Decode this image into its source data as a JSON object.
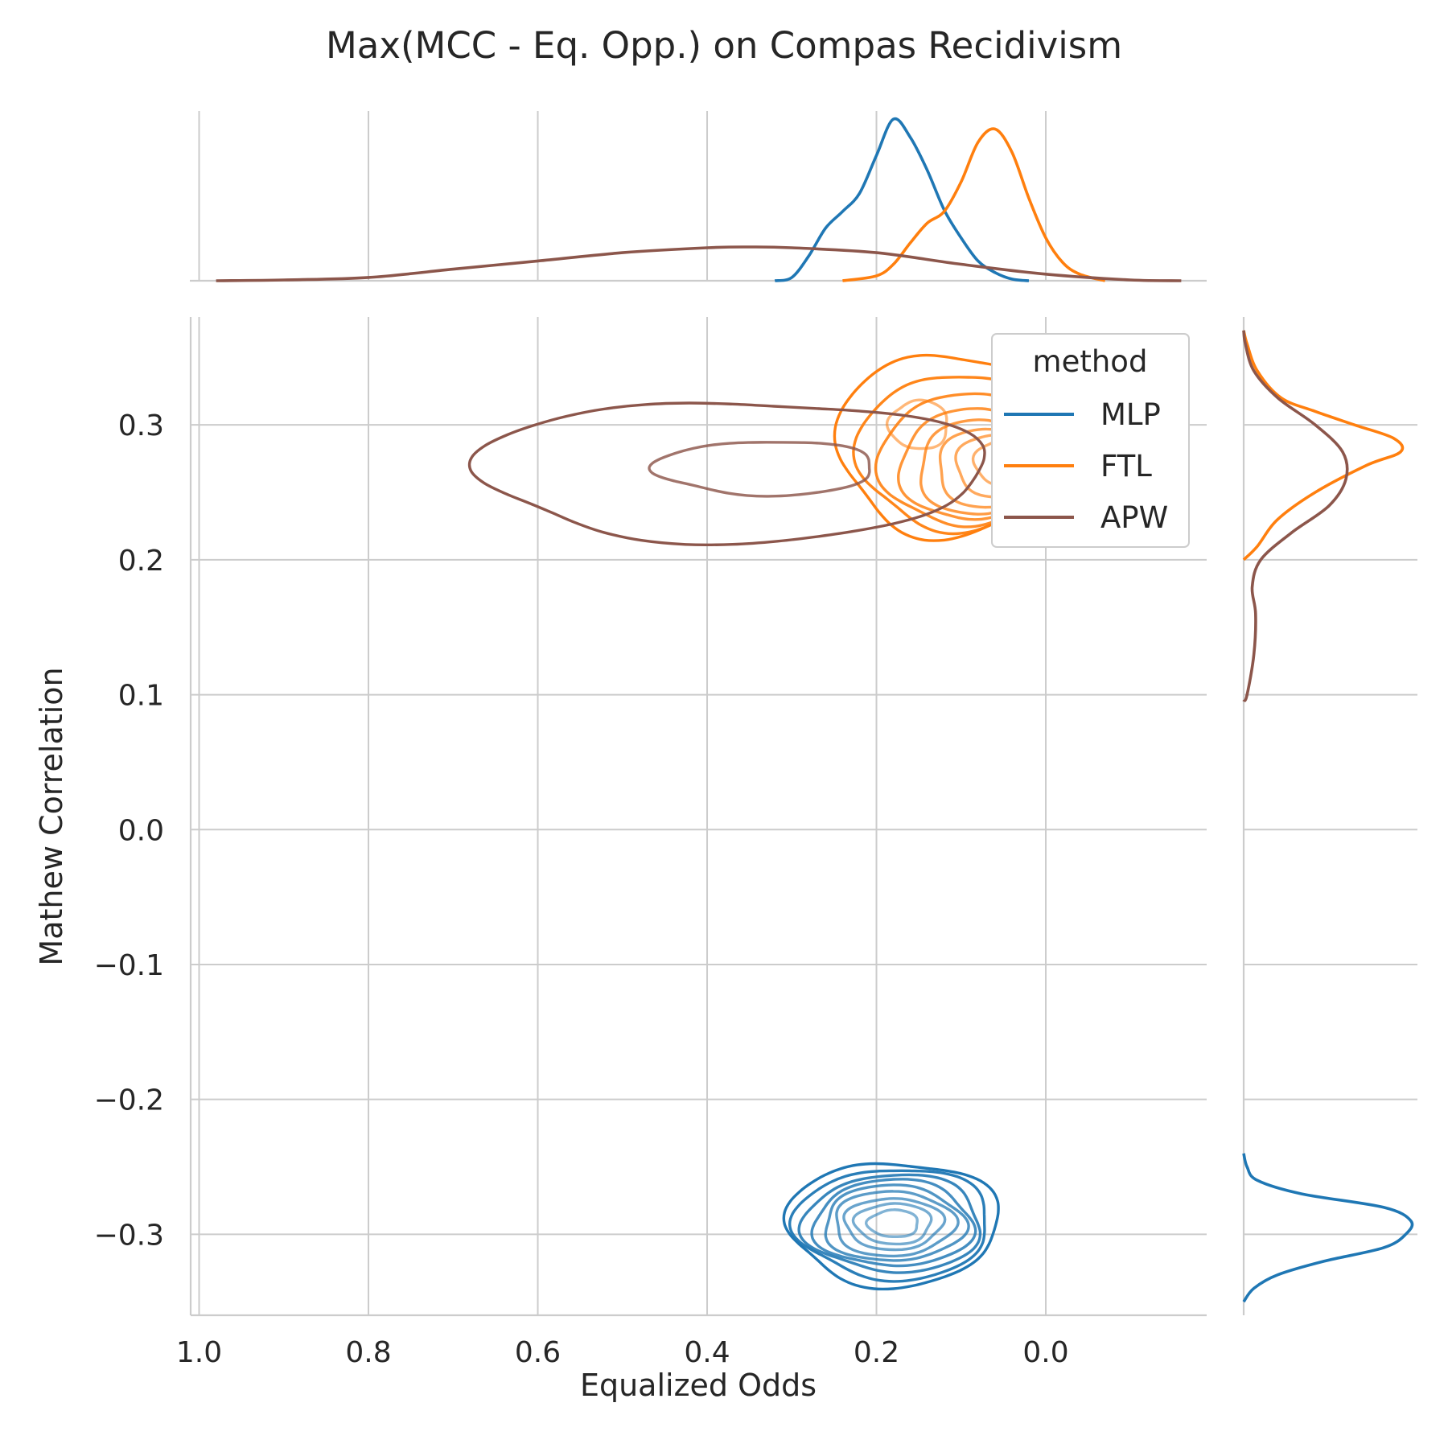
{
  "chart_data": {
    "type": "kde-joint-contour",
    "title": "Max(MCC - Eq. Opp.) on Compas Recidivism",
    "xlabel": "Equalized Odds",
    "ylabel": "Mathew Correlation",
    "x_inverted": true,
    "xlim": [
      1.01,
      -0.19
    ],
    "ylim": [
      -0.36,
      0.38
    ],
    "x_ticks": [
      1.0,
      0.8,
      0.6,
      0.4,
      0.2,
      0.0
    ],
    "x_tick_labels": [
      "1.0",
      "0.8",
      "0.6",
      "0.4",
      "0.2",
      "0.0"
    ],
    "y_ticks": [
      0.3,
      0.2,
      0.1,
      0.0,
      -0.1,
      -0.2,
      -0.3
    ],
    "y_tick_labels": [
      "0.3",
      "0.2",
      "0.1",
      "0.0",
      "−0.1",
      "−0.2",
      "−0.3"
    ],
    "grid": true,
    "legend": {
      "title": "method",
      "placement": "upper-right"
    },
    "series": [
      {
        "name": "MLP",
        "color": "#1f77b4",
        "contours": [
          {
            "center": [
              0.18,
              -0.292
            ],
            "rx": 0.125,
            "ry": 0.046
          },
          {
            "center": [
              0.18,
              -0.292
            ],
            "rx": 0.115,
            "ry": 0.041
          },
          {
            "center": [
              0.18,
              -0.292
            ],
            "rx": 0.105,
            "ry": 0.036
          },
          {
            "center": [
              0.18,
              -0.292
            ],
            "rx": 0.094,
            "ry": 0.032
          },
          {
            "center": [
              0.18,
              -0.292
            ],
            "rx": 0.083,
            "ry": 0.028
          },
          {
            "center": [
              0.18,
              -0.292
            ],
            "rx": 0.071,
            "ry": 0.024
          },
          {
            "center": [
              0.18,
              -0.292
            ],
            "rx": 0.058,
            "ry": 0.019
          },
          {
            "center": [
              0.18,
              -0.292
            ],
            "rx": 0.045,
            "ry": 0.015
          },
          {
            "center": [
              0.18,
              -0.292
            ],
            "rx": 0.03,
            "ry": 0.01
          }
        ],
        "x_marginal": [
          [
            0.32,
            0
          ],
          [
            0.3,
            0.02
          ],
          [
            0.28,
            0.15
          ],
          [
            0.26,
            0.32
          ],
          [
            0.24,
            0.42
          ],
          [
            0.22,
            0.53
          ],
          [
            0.2,
            0.76
          ],
          [
            0.18,
            0.98
          ],
          [
            0.16,
            0.87
          ],
          [
            0.14,
            0.67
          ],
          [
            0.12,
            0.43
          ],
          [
            0.1,
            0.26
          ],
          [
            0.08,
            0.12
          ],
          [
            0.06,
            0.05
          ],
          [
            0.04,
            0.01
          ],
          [
            0.02,
            0
          ]
        ],
        "y_marginal": [
          [
            -0.35,
            0
          ],
          [
            -0.34,
            0.06
          ],
          [
            -0.33,
            0.2
          ],
          [
            -0.32,
            0.47
          ],
          [
            -0.31,
            0.82
          ],
          [
            -0.3,
            0.95
          ],
          [
            -0.29,
            0.98
          ],
          [
            -0.28,
            0.82
          ],
          [
            -0.27,
            0.34
          ],
          [
            -0.26,
            0.08
          ],
          [
            -0.25,
            0.02
          ],
          [
            -0.24,
            0
          ]
        ]
      },
      {
        "name": "FTL",
        "color": "#ff7f0e",
        "contours": [
          {
            "center": [
              0.12,
              0.286
            ],
            "rx": 0.125,
            "ry": 0.068
          },
          {
            "center": [
              0.11,
              0.28
            ],
            "rx": 0.11,
            "ry": 0.058
          },
          {
            "center": [
              0.1,
              0.274
            ],
            "rx": 0.095,
            "ry": 0.049
          },
          {
            "center": [
              0.09,
              0.27
            ],
            "rx": 0.082,
            "ry": 0.041
          },
          {
            "center": [
              0.08,
              0.268
            ],
            "rx": 0.07,
            "ry": 0.035
          },
          {
            "center": [
              0.07,
              0.268
            ],
            "rx": 0.058,
            "ry": 0.029
          },
          {
            "center": [
              0.06,
              0.27
            ],
            "rx": 0.046,
            "ry": 0.023
          },
          {
            "center": [
              0.05,
              0.272
            ],
            "rx": 0.034,
            "ry": 0.017
          },
          {
            "center": [
              0.15,
              0.3
            ],
            "rx": 0.035,
            "ry": 0.018
          }
        ],
        "x_marginal": [
          [
            0.24,
            0
          ],
          [
            0.2,
            0.03
          ],
          [
            0.18,
            0.1
          ],
          [
            0.16,
            0.23
          ],
          [
            0.14,
            0.35
          ],
          [
            0.12,
            0.42
          ],
          [
            0.1,
            0.6
          ],
          [
            0.08,
            0.84
          ],
          [
            0.06,
            0.92
          ],
          [
            0.04,
            0.78
          ],
          [
            0.02,
            0.5
          ],
          [
            0.0,
            0.26
          ],
          [
            -0.02,
            0.11
          ],
          [
            -0.04,
            0.04
          ],
          [
            -0.07,
            0
          ]
        ],
        "y_marginal": [
          [
            0.2,
            0
          ],
          [
            0.21,
            0.08
          ],
          [
            0.23,
            0.2
          ],
          [
            0.25,
            0.42
          ],
          [
            0.27,
            0.72
          ],
          [
            0.28,
            0.92
          ],
          [
            0.29,
            0.88
          ],
          [
            0.3,
            0.65
          ],
          [
            0.31,
            0.42
          ],
          [
            0.32,
            0.22
          ],
          [
            0.34,
            0.08
          ],
          [
            0.36,
            0.02
          ],
          [
            0.37,
            0
          ]
        ]
      },
      {
        "name": "APW",
        "color": "#8c564b",
        "contours": [
          {
            "center": [
              0.37,
              0.266
            ],
            "rx": 0.3,
            "ry": 0.052
          },
          {
            "center": [
              0.33,
              0.268
            ],
            "rx": 0.13,
            "ry": 0.02
          }
        ],
        "x_marginal": [
          [
            0.98,
            0
          ],
          [
            0.9,
            0.005
          ],
          [
            0.8,
            0.02
          ],
          [
            0.7,
            0.07
          ],
          [
            0.6,
            0.12
          ],
          [
            0.5,
            0.17
          ],
          [
            0.4,
            0.2
          ],
          [
            0.35,
            0.205
          ],
          [
            0.3,
            0.2
          ],
          [
            0.2,
            0.17
          ],
          [
            0.1,
            0.1
          ],
          [
            0.0,
            0.04
          ],
          [
            -0.1,
            0.005
          ],
          [
            -0.16,
            0
          ]
        ],
        "y_marginal": [
          [
            0.095,
            0
          ],
          [
            0.1,
            0.02
          ],
          [
            0.13,
            0.06
          ],
          [
            0.16,
            0.07
          ],
          [
            0.18,
            0.05
          ],
          [
            0.2,
            0.1
          ],
          [
            0.22,
            0.28
          ],
          [
            0.24,
            0.5
          ],
          [
            0.26,
            0.6
          ],
          [
            0.28,
            0.58
          ],
          [
            0.3,
            0.42
          ],
          [
            0.32,
            0.2
          ],
          [
            0.34,
            0.06
          ],
          [
            0.36,
            0.01
          ],
          [
            0.37,
            0
          ]
        ]
      }
    ]
  }
}
